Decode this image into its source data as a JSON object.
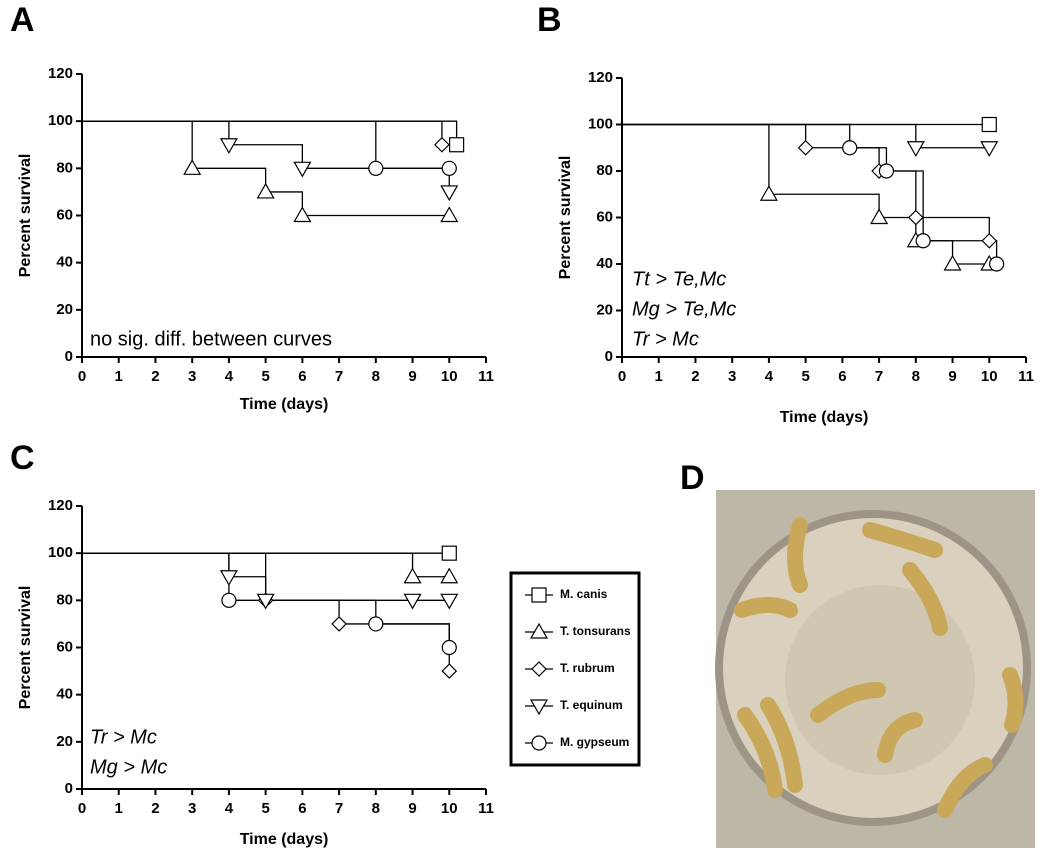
{
  "chart_data": [
    {
      "type": "step",
      "label": "A",
      "xlabel": "Time (days)",
      "ylabel": "Percent survival",
      "xlim": [
        0,
        11
      ],
      "ylim": [
        0,
        120
      ],
      "xticks": [
        0,
        1,
        2,
        3,
        4,
        5,
        6,
        7,
        8,
        9,
        10,
        11
      ],
      "yticks": [
        0,
        20,
        40,
        60,
        80,
        100,
        120
      ],
      "annotations": [
        "no sig. diff. between curves"
      ],
      "italic": false,
      "series": [
        {
          "name": "M. canis",
          "marker": "square",
          "x": [
            0,
            10.2
          ],
          "values": [
            100,
            90
          ]
        },
        {
          "name": "T. tonsurans",
          "marker": "triangle",
          "x": [
            0,
            3,
            5,
            6,
            10
          ],
          "values": [
            100,
            80,
            70,
            60,
            60
          ]
        },
        {
          "name": "T. rubrum",
          "marker": "diamond",
          "x": [
            0,
            9.8
          ],
          "values": [
            100,
            90
          ]
        },
        {
          "name": "T. equinum",
          "marker": "triangle-down",
          "x": [
            0,
            4,
            6,
            10
          ],
          "values": [
            100,
            90,
            80,
            70
          ]
        },
        {
          "name": "M. gypseum",
          "marker": "circle",
          "x": [
            0,
            8,
            10
          ],
          "values": [
            100,
            80,
            80
          ]
        }
      ]
    },
    {
      "type": "step",
      "label": "B",
      "xlabel": "Time (days)",
      "ylabel": "Percent survival",
      "xlim": [
        0,
        11
      ],
      "ylim": [
        0,
        120
      ],
      "xticks": [
        0,
        1,
        2,
        3,
        4,
        5,
        6,
        7,
        8,
        9,
        10,
        11
      ],
      "yticks": [
        0,
        20,
        40,
        60,
        80,
        100,
        120
      ],
      "annotations": [
        "Tt > Te,Mc",
        "Mg > Te,Mc",
        "Tr > Mc"
      ],
      "italic": true,
      "series": [
        {
          "name": "M. canis",
          "marker": "square",
          "x": [
            0,
            10
          ],
          "values": [
            100,
            100
          ]
        },
        {
          "name": "T. tonsurans",
          "marker": "triangle",
          "x": [
            0,
            4,
            7,
            8,
            9,
            10
          ],
          "values": [
            100,
            70,
            60,
            50,
            40,
            40
          ]
        },
        {
          "name": "T. rubrum",
          "marker": "diamond",
          "x": [
            0,
            5,
            7,
            8,
            10
          ],
          "values": [
            100,
            90,
            80,
            60,
            50
          ]
        },
        {
          "name": "T. equinum",
          "marker": "triangle-down",
          "x": [
            0,
            8,
            10
          ],
          "values": [
            100,
            90,
            90
          ]
        },
        {
          "name": "M. gypseum",
          "marker": "circle",
          "x": [
            0,
            6.2,
            7.2,
            8.2,
            10.2
          ],
          "values": [
            100,
            90,
            80,
            50,
            40
          ]
        }
      ]
    },
    {
      "type": "step",
      "label": "C",
      "xlabel": "Time (days)",
      "ylabel": "Percent survival",
      "xlim": [
        0,
        11
      ],
      "ylim": [
        0,
        120
      ],
      "xticks": [
        0,
        1,
        2,
        3,
        4,
        5,
        6,
        7,
        8,
        9,
        10,
        11
      ],
      "yticks": [
        0,
        20,
        40,
        60,
        80,
        100,
        120
      ],
      "annotations": [
        "Tr > Mc",
        "Mg > Mc"
      ],
      "italic": true,
      "series": [
        {
          "name": "M. canis",
          "marker": "square",
          "x": [
            0,
            10
          ],
          "values": [
            100,
            100
          ]
        },
        {
          "name": "T. tonsurans",
          "marker": "triangle",
          "x": [
            0,
            9,
            10
          ],
          "values": [
            100,
            90,
            90
          ]
        },
        {
          "name": "T. rubrum",
          "marker": "diamond",
          "x": [
            0,
            5,
            7,
            10
          ],
          "values": [
            100,
            80,
            70,
            50
          ]
        },
        {
          "name": "T. equinum",
          "marker": "triangle-down",
          "x": [
            0,
            4,
            5,
            9,
            10
          ],
          "values": [
            100,
            90,
            80,
            80,
            80
          ]
        },
        {
          "name": "M. gypseum",
          "marker": "circle",
          "x": [
            0,
            4,
            8,
            10
          ],
          "values": [
            100,
            80,
            70,
            60
          ]
        }
      ]
    }
  ],
  "photo": {
    "label": "D"
  }
}
